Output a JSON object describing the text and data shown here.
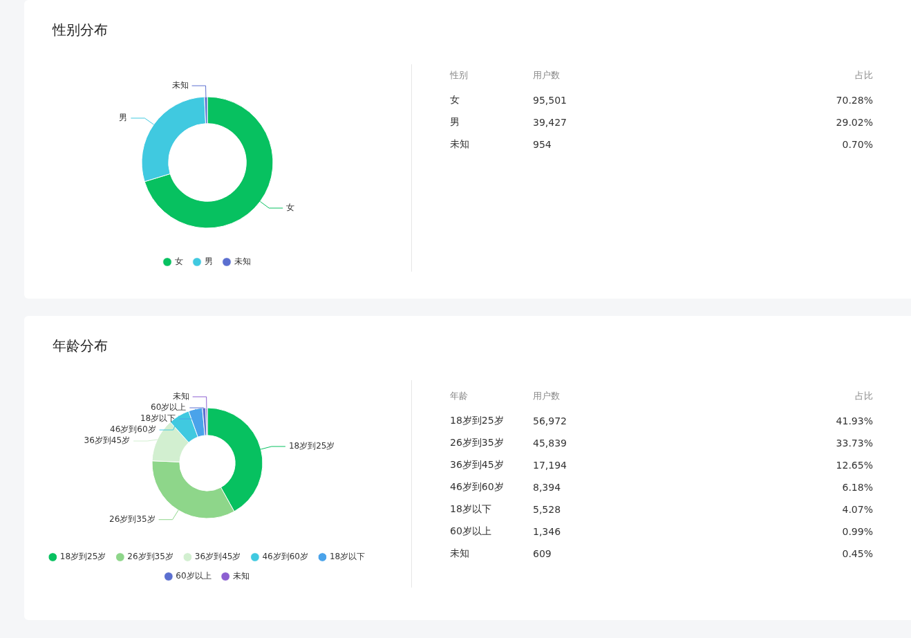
{
  "chart_data": [
    {
      "type": "donut",
      "title": "性别分布",
      "categories": [
        "女",
        "男",
        "未知"
      ],
      "values": [
        70.28,
        29.02,
        0.7
      ],
      "colors": [
        "#07c160",
        "#40c9e0",
        "#5b6fd0"
      ],
      "legend": "bottom",
      "annotations": [
        "性别",
        "用户数",
        "占比",
        "95,501",
        "70.28%",
        "39,427",
        "29.02%",
        "954",
        "0.70%"
      ]
    },
    {
      "type": "donut",
      "title": "年龄分布",
      "categories": [
        "18岁到25岁",
        "26岁到35岁",
        "36岁到45岁",
        "46岁到60岁",
        "18岁以下",
        "60岁以上",
        "未知"
      ],
      "values": [
        41.93,
        33.73,
        12.65,
        6.18,
        4.07,
        0.99,
        0.45
      ],
      "colors": [
        "#07c160",
        "#8ed68a",
        "#d2efd0",
        "#40c9e0",
        "#4aa3ea",
        "#5b6fd0",
        "#8c5fd1"
      ],
      "legend": "bottom",
      "annotations": [
        "年龄",
        "用户数",
        "占比",
        "56,972",
        "41.93%",
        "45,839",
        "33.73%",
        "17,194",
        "12.65%",
        "8,394",
        "6.18%",
        "5,528",
        "4.07%",
        "1,346",
        "0.99%",
        "609",
        "0.45%"
      ]
    }
  ]
}
